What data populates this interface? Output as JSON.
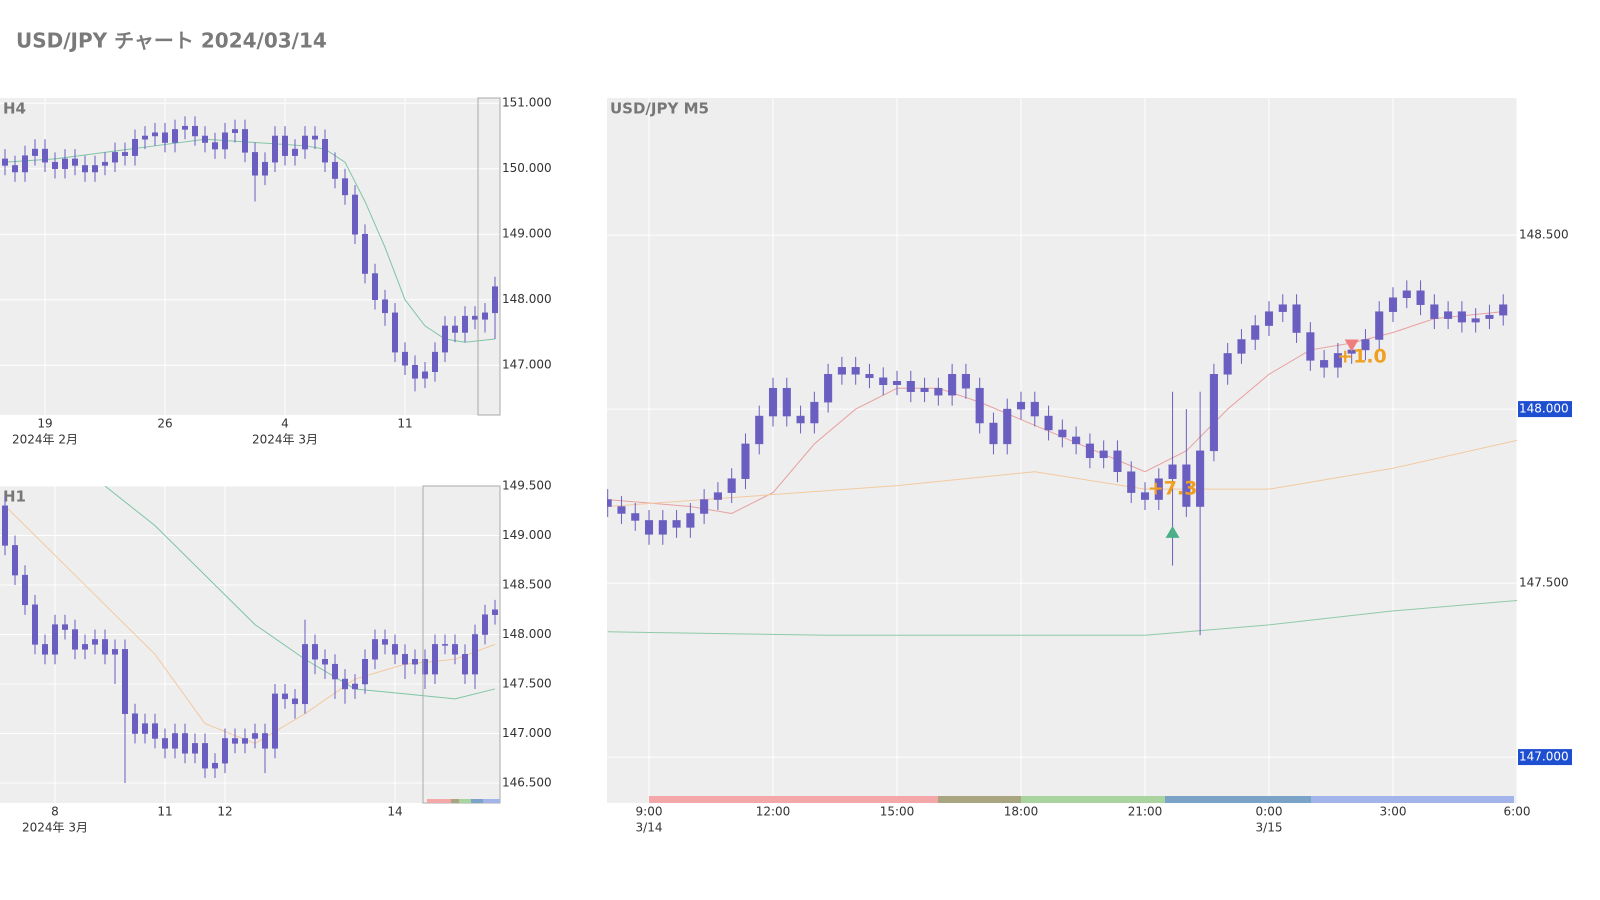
{
  "title": "USD/JPY チャート 2024/03/14",
  "chart_data": [
    {
      "type": "candlestick",
      "title": "H4",
      "color": "#6a5fc1",
      "grid": true,
      "xlim": [
        -0.5,
        49.5
      ],
      "xticks": [
        {
          "value": 4,
          "label": "19"
        },
        {
          "value": 16,
          "label": "26"
        },
        {
          "value": 28,
          "label": "4"
        },
        {
          "value": 40,
          "label": "11"
        }
      ],
      "xsublabels": [
        {
          "value": 4,
          "label": "2024年 2月"
        },
        {
          "value": 28,
          "label": "2024年 3月"
        }
      ],
      "ylim": [
        146.24,
        151.08
      ],
      "yticks": [
        {
          "value": 147,
          "label": "147.000"
        },
        {
          "value": 148,
          "label": "148.000"
        },
        {
          "value": 149,
          "label": "149.000"
        },
        {
          "value": 150,
          "label": "150.000"
        },
        {
          "value": 151,
          "label": "151.000"
        }
      ],
      "open": [
        150.15,
        150.05,
        149.95,
        150.2,
        150.3,
        150.1,
        150.0,
        150.15,
        150.05,
        149.95,
        150.05,
        150.1,
        150.25,
        150.2,
        150.45,
        150.5,
        150.55,
        150.4,
        150.6,
        150.65,
        150.5,
        150.4,
        150.3,
        150.55,
        150.6,
        150.25,
        149.9,
        150.1,
        150.5,
        150.2,
        150.3,
        150.5,
        150.45,
        150.1,
        149.85,
        149.6,
        149.0,
        148.4,
        148.0,
        147.8,
        147.2,
        147.0,
        146.8,
        146.9,
        147.2,
        147.6,
        147.5,
        147.75,
        147.7,
        147.8
      ],
      "high": [
        150.3,
        150.2,
        150.35,
        150.45,
        150.45,
        150.25,
        150.3,
        150.3,
        150.2,
        150.2,
        150.25,
        150.4,
        150.4,
        150.6,
        150.65,
        150.7,
        150.7,
        150.75,
        150.8,
        150.8,
        150.65,
        150.55,
        150.7,
        150.75,
        150.75,
        150.4,
        150.25,
        150.65,
        150.65,
        150.45,
        150.65,
        150.65,
        150.6,
        150.25,
        150.0,
        149.75,
        149.15,
        148.55,
        148.15,
        147.95,
        147.35,
        147.15,
        147.05,
        147.35,
        147.75,
        147.75,
        147.9,
        147.9,
        147.95,
        148.35
      ],
      "low": [
        149.9,
        149.8,
        149.8,
        150.05,
        149.95,
        149.85,
        149.85,
        149.9,
        149.8,
        149.8,
        149.9,
        149.95,
        150.05,
        150.05,
        150.3,
        150.35,
        150.25,
        150.25,
        150.45,
        150.35,
        150.25,
        150.15,
        150.15,
        150.4,
        150.1,
        149.5,
        149.75,
        149.95,
        150.05,
        150.05,
        150.15,
        150.3,
        149.95,
        149.7,
        149.45,
        148.85,
        148.25,
        147.85,
        147.6,
        147.05,
        146.85,
        146.6,
        146.65,
        146.75,
        147.05,
        147.35,
        147.35,
        147.55,
        147.5,
        147.4
      ],
      "close": [
        150.05,
        149.95,
        150.2,
        150.3,
        150.1,
        150.0,
        150.15,
        150.05,
        149.95,
        150.05,
        150.1,
        150.25,
        150.2,
        150.45,
        150.5,
        150.55,
        150.4,
        150.6,
        150.65,
        150.5,
        150.4,
        150.3,
        150.55,
        150.6,
        150.25,
        149.9,
        150.1,
        150.5,
        150.2,
        150.3,
        150.5,
        150.45,
        150.1,
        149.85,
        149.6,
        149.0,
        148.4,
        148.0,
        147.8,
        147.2,
        147.0,
        146.8,
        146.9,
        147.2,
        147.6,
        147.5,
        147.75,
        147.7,
        147.8,
        148.2
      ],
      "lines": [
        {
          "color": "#7fc4a4",
          "x": [
            0,
            5,
            10,
            15,
            20,
            25,
            30,
            32,
            34,
            36,
            38,
            40,
            42,
            44,
            46,
            49
          ],
          "values": [
            150.1,
            150.15,
            150.25,
            150.35,
            150.45,
            150.4,
            150.35,
            150.3,
            150.1,
            149.5,
            148.8,
            148.0,
            147.6,
            147.4,
            147.35,
            147.4
          ]
        }
      ]
    },
    {
      "type": "candlestick",
      "title": "H1",
      "color": "#6a5fc1",
      "grid": true,
      "xlim": [
        -0.5,
        49.5
      ],
      "xticks": [
        {
          "value": 5,
          "label": "8"
        },
        {
          "value": 16,
          "label": "11"
        },
        {
          "value": 22,
          "label": "12"
        },
        {
          "value": 39,
          "label": "14"
        }
      ],
      "xsublabels": [
        {
          "value": 5,
          "label": "2024年 3月"
        }
      ],
      "ylim": [
        146.298,
        149.5
      ],
      "yticks": [
        {
          "value": 146.5,
          "label": "146.500"
        },
        {
          "value": 147,
          "label": "147.000"
        },
        {
          "value": 147.5,
          "label": "147.500"
        },
        {
          "value": 148,
          "label": "148.000"
        },
        {
          "value": 148.5,
          "label": "148.500"
        },
        {
          "value": 149,
          "label": "149.000"
        },
        {
          "value": 149.5,
          "label": "149.500"
        }
      ],
      "open": [
        149.3,
        148.9,
        148.6,
        148.3,
        147.9,
        147.8,
        148.1,
        148.05,
        147.85,
        147.9,
        147.95,
        147.8,
        147.85,
        147.2,
        147.0,
        147.1,
        146.95,
        146.85,
        147.0,
        146.8,
        146.9,
        146.65,
        146.7,
        146.95,
        146.9,
        146.95,
        147.0,
        146.85,
        147.4,
        147.35,
        147.3,
        147.9,
        147.75,
        147.7,
        147.55,
        147.45,
        147.5,
        147.75,
        147.95,
        147.9,
        147.8,
        147.7,
        147.75,
        147.6,
        147.9,
        147.9,
        147.8,
        147.6,
        148.0,
        148.2
      ],
      "high": [
        149.4,
        149.0,
        148.7,
        148.4,
        148.0,
        148.2,
        148.2,
        148.15,
        148.0,
        148.05,
        148.05,
        147.95,
        147.95,
        147.3,
        147.2,
        147.2,
        147.05,
        147.1,
        147.1,
        147.0,
        147.0,
        146.8,
        147.05,
        147.05,
        147.05,
        147.1,
        147.1,
        147.5,
        147.5,
        147.45,
        148.15,
        148.0,
        147.85,
        147.8,
        147.65,
        147.6,
        147.85,
        148.05,
        148.05,
        148.0,
        147.9,
        147.85,
        147.85,
        148.0,
        148.0,
        148.0,
        147.9,
        148.1,
        148.3,
        148.35
      ],
      "low": [
        148.8,
        148.5,
        148.2,
        147.8,
        147.7,
        147.7,
        147.95,
        147.75,
        147.75,
        147.8,
        147.7,
        147.5,
        146.5,
        146.9,
        146.9,
        146.85,
        146.75,
        146.75,
        146.7,
        146.7,
        146.55,
        146.55,
        146.6,
        146.8,
        146.8,
        146.85,
        146.6,
        146.75,
        147.25,
        147.15,
        147.2,
        147.6,
        147.55,
        147.35,
        147.3,
        147.35,
        147.4,
        147.65,
        147.8,
        147.7,
        147.55,
        147.6,
        147.45,
        147.5,
        147.8,
        147.7,
        147.5,
        147.45,
        147.9,
        148.1
      ],
      "close": [
        148.9,
        148.6,
        148.3,
        147.9,
        147.8,
        148.1,
        148.05,
        147.85,
        147.9,
        147.95,
        147.8,
        147.85,
        147.2,
        147.0,
        147.1,
        146.95,
        146.85,
        147.0,
        146.8,
        146.9,
        146.65,
        146.7,
        146.95,
        146.9,
        146.95,
        147.0,
        146.85,
        147.4,
        147.35,
        147.3,
        147.9,
        147.75,
        147.7,
        147.55,
        147.45,
        147.5,
        147.75,
        147.95,
        147.9,
        147.8,
        147.7,
        147.75,
        147.6,
        147.9,
        147.9,
        147.8,
        147.6,
        148.0,
        148.2,
        148.25
      ],
      "lines": [
        {
          "color": "#7fc4a4",
          "x": [
            10,
            15,
            20,
            25,
            30,
            35,
            40,
            45,
            49
          ],
          "values": [
            149.5,
            149.1,
            148.6,
            148.1,
            147.75,
            147.45,
            147.4,
            147.35,
            147.45
          ]
        },
        {
          "color": "#f2c9a0",
          "x": [
            0,
            5,
            10,
            15,
            20,
            25,
            30,
            35,
            40,
            45,
            49
          ],
          "values": [
            149.3,
            148.8,
            148.3,
            147.8,
            147.1,
            146.9,
            147.2,
            147.55,
            147.7,
            147.75,
            147.9
          ]
        }
      ]
    },
    {
      "type": "candlestick",
      "title": "USD/JPY M5",
      "color": "#6a5fc1",
      "grid": true,
      "xlim": [
        479,
        1800
      ],
      "xticks": [
        {
          "value": 540,
          "label": "9:00"
        },
        {
          "value": 720,
          "label": "12:00"
        },
        {
          "value": 900,
          "label": "15:00"
        },
        {
          "value": 1080,
          "label": "18:00"
        },
        {
          "value": 1260,
          "label": "21:00"
        },
        {
          "value": 1440,
          "label": "0:00"
        },
        {
          "value": 1620,
          "label": "3:00"
        },
        {
          "value": 1800,
          "label": "6:00"
        }
      ],
      "xsublabels": [
        {
          "value": 540,
          "label": "3/14"
        },
        {
          "value": 1440,
          "label": "3/15"
        }
      ],
      "ylim": [
        146.868,
        148.894
      ],
      "yticks": [
        {
          "value": 147,
          "label": "147.000",
          "highlight": true
        },
        {
          "value": 147.5,
          "label": "147.500"
        },
        {
          "value": 148,
          "label": "148.000",
          "highlight": true
        },
        {
          "value": 148.5,
          "label": "148.500"
        }
      ],
      "x": [
        480,
        500,
        520,
        540,
        560,
        580,
        600,
        620,
        640,
        660,
        680,
        700,
        720,
        740,
        760,
        780,
        800,
        820,
        840,
        860,
        880,
        900,
        920,
        940,
        960,
        980,
        1000,
        1020,
        1040,
        1060,
        1080,
        1100,
        1120,
        1140,
        1160,
        1180,
        1200,
        1220,
        1240,
        1260,
        1280,
        1300,
        1320,
        1340,
        1360,
        1380,
        1400,
        1420,
        1440,
        1460,
        1480,
        1500,
        1520,
        1540,
        1560,
        1580,
        1600,
        1620,
        1640,
        1660,
        1680,
        1700,
        1720,
        1740,
        1760,
        1780
      ],
      "open": [
        147.74,
        147.72,
        147.7,
        147.68,
        147.64,
        147.68,
        147.66,
        147.7,
        147.74,
        147.76,
        147.8,
        147.9,
        147.98,
        148.06,
        147.98,
        147.96,
        148.02,
        148.1,
        148.12,
        148.1,
        148.09,
        148.07,
        148.08,
        148.05,
        148.06,
        148.04,
        148.1,
        148.06,
        147.96,
        147.9,
        148.0,
        148.02,
        147.98,
        147.94,
        147.92,
        147.9,
        147.86,
        147.88,
        147.82,
        147.76,
        147.74,
        147.8,
        147.84,
        147.72,
        147.88,
        148.1,
        148.16,
        148.2,
        148.24,
        148.28,
        148.3,
        148.22,
        148.14,
        148.12,
        148.16,
        148.17,
        148.2,
        148.28,
        148.32,
        148.34,
        148.3,
        148.26,
        148.28,
        148.25,
        148.26,
        148.27
      ],
      "high": [
        147.77,
        147.75,
        147.73,
        147.71,
        147.71,
        147.71,
        147.73,
        147.77,
        147.79,
        147.83,
        147.93,
        148.01,
        148.09,
        148.09,
        148.01,
        148.05,
        148.13,
        148.15,
        148.15,
        148.13,
        148.12,
        148.11,
        148.11,
        148.09,
        148.09,
        148.13,
        148.13,
        148.09,
        147.99,
        148.03,
        148.05,
        148.05,
        148.01,
        147.97,
        147.95,
        147.93,
        147.91,
        147.91,
        147.85,
        147.79,
        147.83,
        148.05,
        148.0,
        148.05,
        148.13,
        148.19,
        148.23,
        148.27,
        148.31,
        148.33,
        148.33,
        148.25,
        148.17,
        148.19,
        148.2,
        148.23,
        148.31,
        148.35,
        148.37,
        148.37,
        148.33,
        148.31,
        148.31,
        148.29,
        148.3,
        148.33
      ],
      "low": [
        147.69,
        147.67,
        147.65,
        147.61,
        147.61,
        147.63,
        147.63,
        147.67,
        147.71,
        147.73,
        147.77,
        147.87,
        147.95,
        147.95,
        147.93,
        147.93,
        147.99,
        148.07,
        148.07,
        148.06,
        148.04,
        148.04,
        148.02,
        148.02,
        148.01,
        148.01,
        148.03,
        147.93,
        147.87,
        147.87,
        147.97,
        147.95,
        147.91,
        147.89,
        147.87,
        147.83,
        147.83,
        147.79,
        147.73,
        147.71,
        147.71,
        147.55,
        147.69,
        147.35,
        147.85,
        148.07,
        148.13,
        148.17,
        148.21,
        148.25,
        148.19,
        148.11,
        148.09,
        148.09,
        148.13,
        148.14,
        148.17,
        148.25,
        148.29,
        148.27,
        148.23,
        148.23,
        148.22,
        148.22,
        148.23,
        148.24
      ],
      "close": [
        147.72,
        147.7,
        147.68,
        147.64,
        147.68,
        147.66,
        147.7,
        147.74,
        147.76,
        147.8,
        147.9,
        147.98,
        148.06,
        147.98,
        147.96,
        148.02,
        148.1,
        148.12,
        148.1,
        148.09,
        148.07,
        148.08,
        148.05,
        148.06,
        148.04,
        148.1,
        148.06,
        147.96,
        147.9,
        148.0,
        148.02,
        147.98,
        147.94,
        147.92,
        147.9,
        147.86,
        147.88,
        147.82,
        147.76,
        147.74,
        147.8,
        147.84,
        147.72,
        147.88,
        148.1,
        148.16,
        148.2,
        148.24,
        148.28,
        148.3,
        148.22,
        148.14,
        148.12,
        148.16,
        148.17,
        148.2,
        148.28,
        148.32,
        148.34,
        148.3,
        148.26,
        148.28,
        148.25,
        148.26,
        148.27,
        148.3
      ],
      "lines": [
        {
          "color": "#e8a0a0",
          "x": [
            480,
            600,
            660,
            720,
            780,
            840,
            900,
            960,
            1020,
            1080,
            1140,
            1200,
            1260,
            1320,
            1380,
            1440,
            1500,
            1560,
            1620,
            1680,
            1780
          ],
          "values": [
            147.74,
            147.72,
            147.7,
            147.76,
            147.9,
            148.0,
            148.06,
            148.06,
            148.02,
            147.97,
            147.92,
            147.87,
            147.82,
            147.88,
            148.0,
            148.1,
            148.17,
            148.19,
            148.22,
            148.26,
            148.28
          ]
        },
        {
          "color": "#f2c9a0",
          "x": [
            480,
            900,
            1100,
            1260,
            1440,
            1620,
            1800
          ],
          "values": [
            147.72,
            147.78,
            147.82,
            147.77,
            147.77,
            147.83,
            147.91
          ]
        },
        {
          "color": "#8fcaa8",
          "x": [
            480,
            800,
            1260,
            1440,
            1620,
            1800
          ],
          "values": [
            147.36,
            147.35,
            147.35,
            147.38,
            147.42,
            147.45
          ]
        }
      ],
      "markers": [
        {
          "x": 1300,
          "value": 147.63,
          "color": "#4caf8a",
          "direction": "up"
        },
        {
          "x": 1560,
          "value": 148.2,
          "color": "#ef7f7f",
          "direction": "down"
        }
      ],
      "annotations": [
        {
          "text": "+7.3",
          "x": 1300,
          "y": 147.77,
          "color": "#f0a020"
        },
        {
          "text": "+1.0",
          "x": 1575,
          "y": 148.15,
          "color": "#f0a020"
        }
      ]
    }
  ]
}
